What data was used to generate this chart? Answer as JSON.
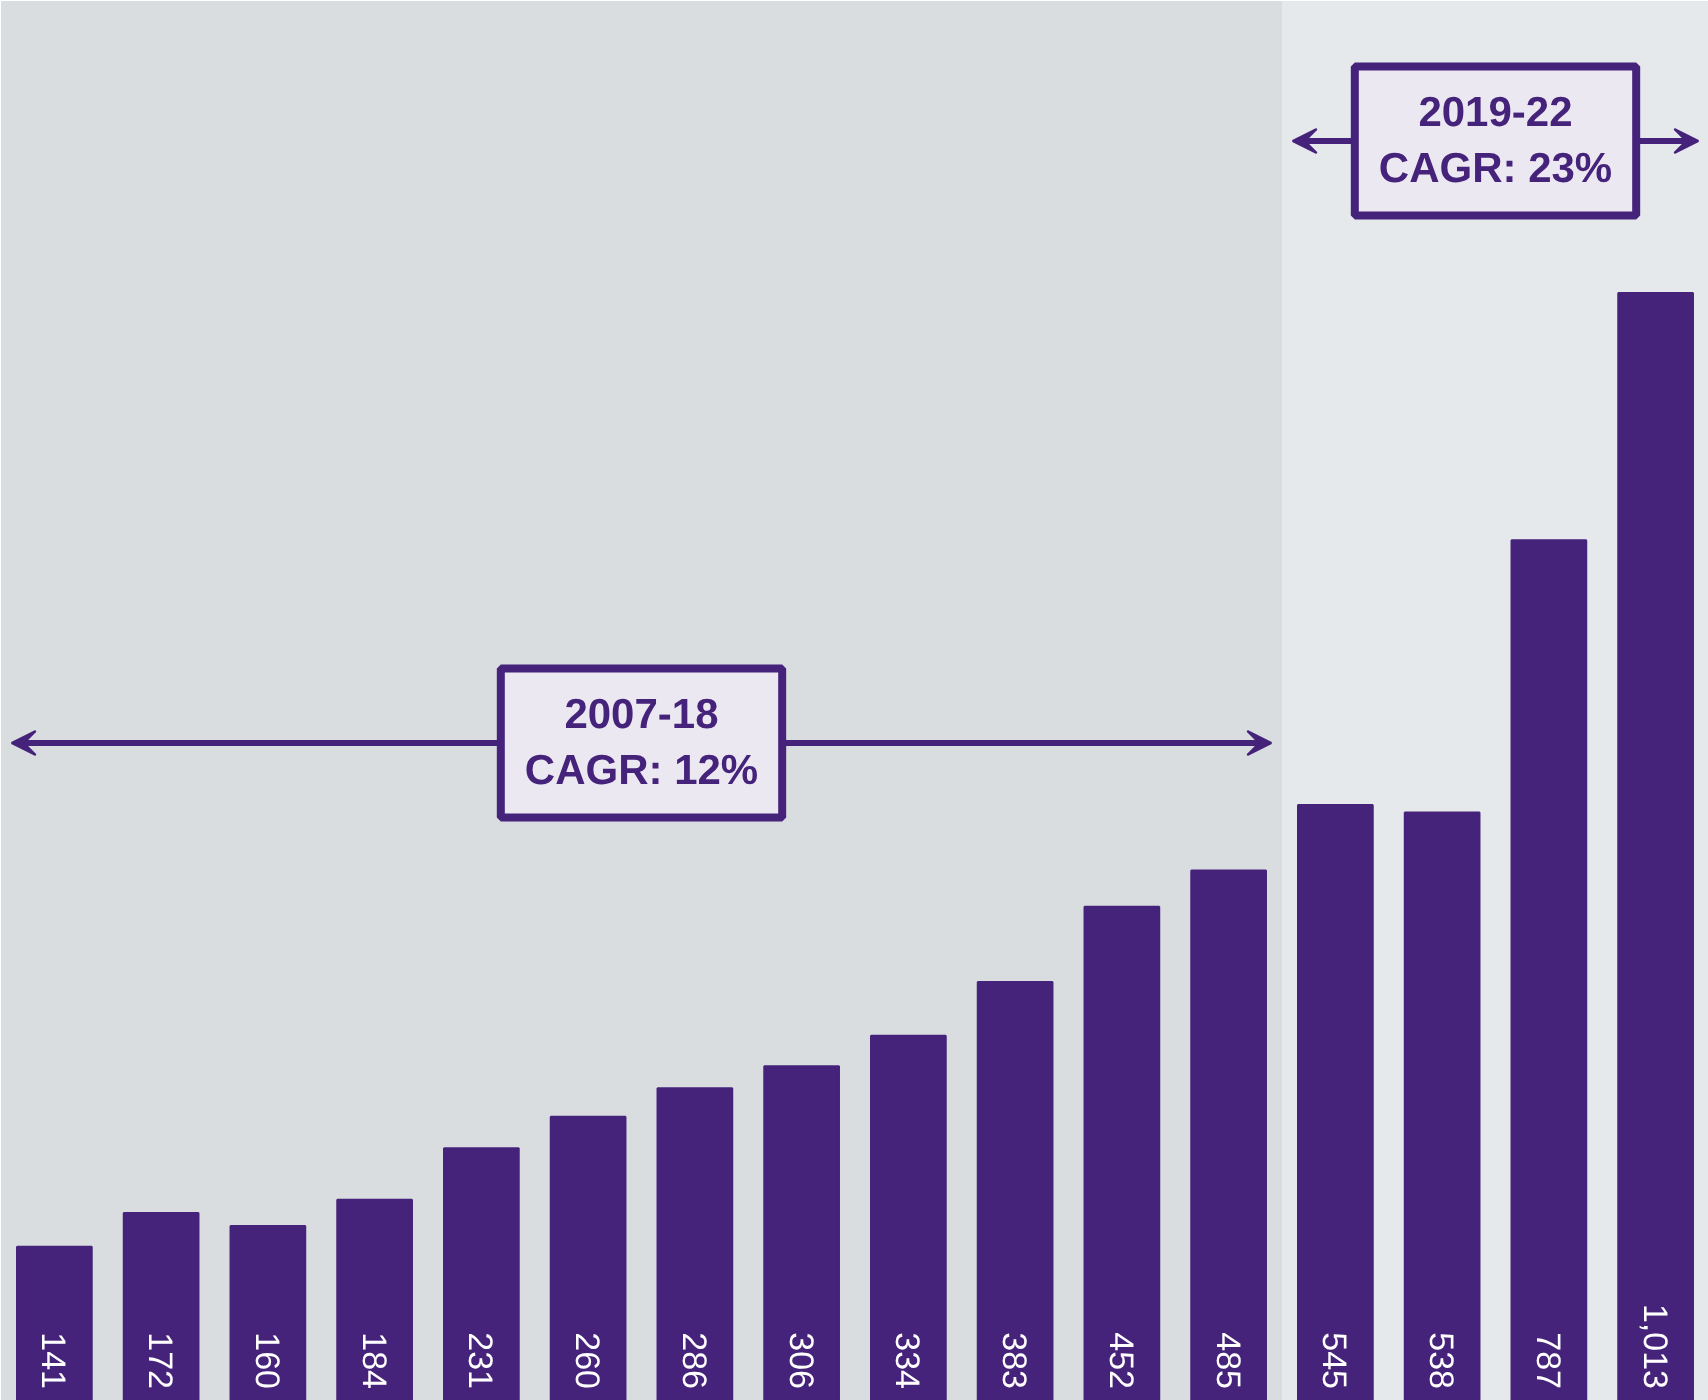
{
  "chart_data": {
    "type": "bar",
    "categories": [
      null,
      null,
      null,
      null,
      null,
      null,
      null,
      null,
      null,
      null,
      null,
      null,
      null,
      null,
      null,
      null
    ],
    "values": [
      141,
      172,
      160,
      184,
      231,
      260,
      286,
      306,
      334,
      383,
      452,
      485,
      545,
      538,
      787,
      1013
    ],
    "value_labels": [
      "141",
      "172",
      "160",
      "184",
      "231",
      "260",
      "286",
      "306",
      "334",
      "383",
      "452",
      "485",
      "545",
      "538",
      "787",
      "1,013"
    ],
    "color": "#46237a",
    "ylim": [
      0,
      1280
    ],
    "annotations": [
      "2007-18\nCAGR: 12%",
      "2019-22\nCAGR: 23%"
    ]
  }
}
